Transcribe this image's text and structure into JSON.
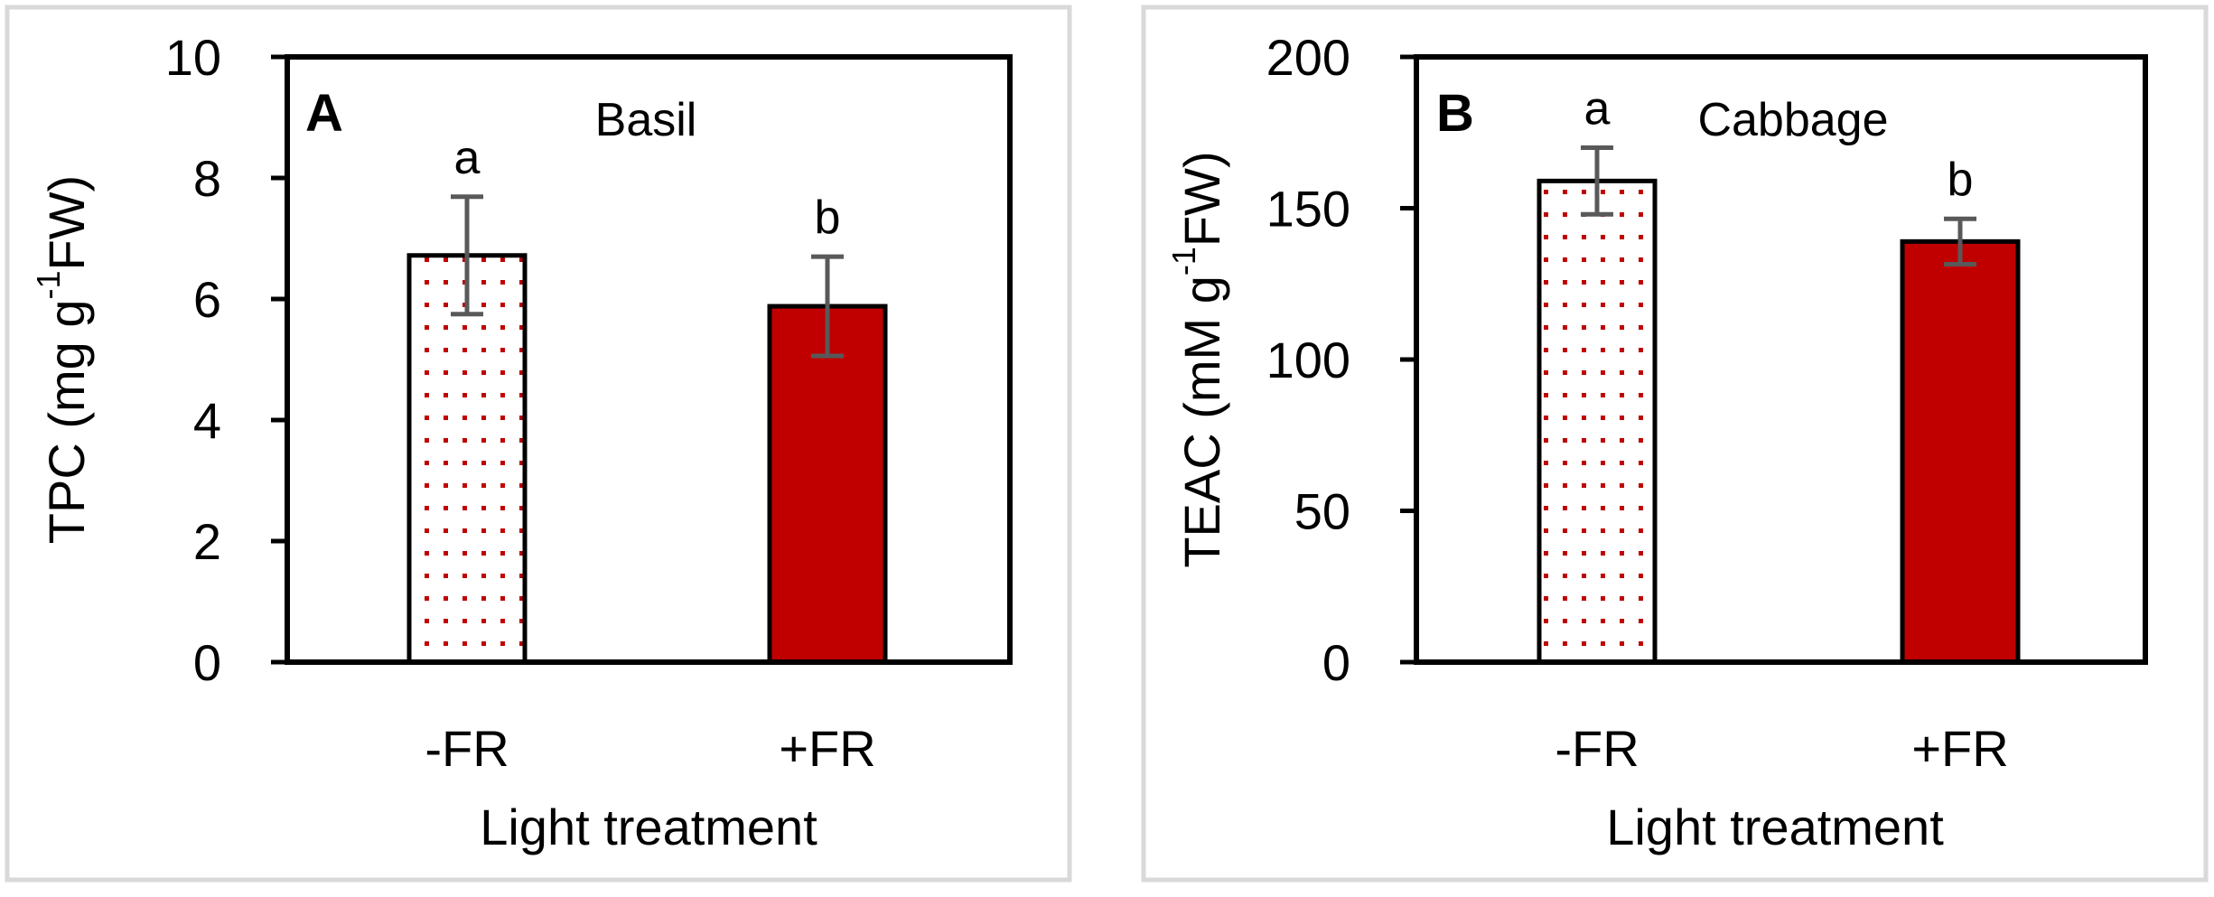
{
  "chart_data": [
    {
      "type": "bar",
      "panel_label": "A",
      "title": "Basil",
      "xlabel": "Light treatment",
      "ylabel": {
        "base": "TPC (mg g",
        "sup": "-1",
        "tail": "FW)"
      },
      "ylim": [
        0,
        10
      ],
      "yticks": [
        0,
        2,
        4,
        6,
        8,
        10
      ],
      "categories": [
        "-FR",
        "+FR"
      ],
      "values": [
        6.72,
        5.88
      ],
      "errors": [
        0.97,
        0.82
      ],
      "significance": [
        "a",
        "b"
      ],
      "fills": [
        "dotted",
        "solid"
      ],
      "grid": false
    },
    {
      "type": "bar",
      "panel_label": "B",
      "title": "Cabbage",
      "xlabel": "Light treatment",
      "ylabel": {
        "base": "TEAC (mM g",
        "sup": "-1",
        "tail": "FW)"
      },
      "ylim": [
        0,
        200
      ],
      "yticks": [
        0,
        50,
        100,
        150,
        200
      ],
      "categories": [
        "-FR",
        "+FR"
      ],
      "values": [
        159,
        139
      ],
      "errors": [
        11,
        7.5
      ],
      "significance": [
        "a",
        "b"
      ],
      "fills": [
        "dotted",
        "solid"
      ],
      "grid": false
    }
  ],
  "colors": {
    "bar_red": "#c00000",
    "error_bar": "#595959",
    "panel_border": "#d9d9d9"
  }
}
